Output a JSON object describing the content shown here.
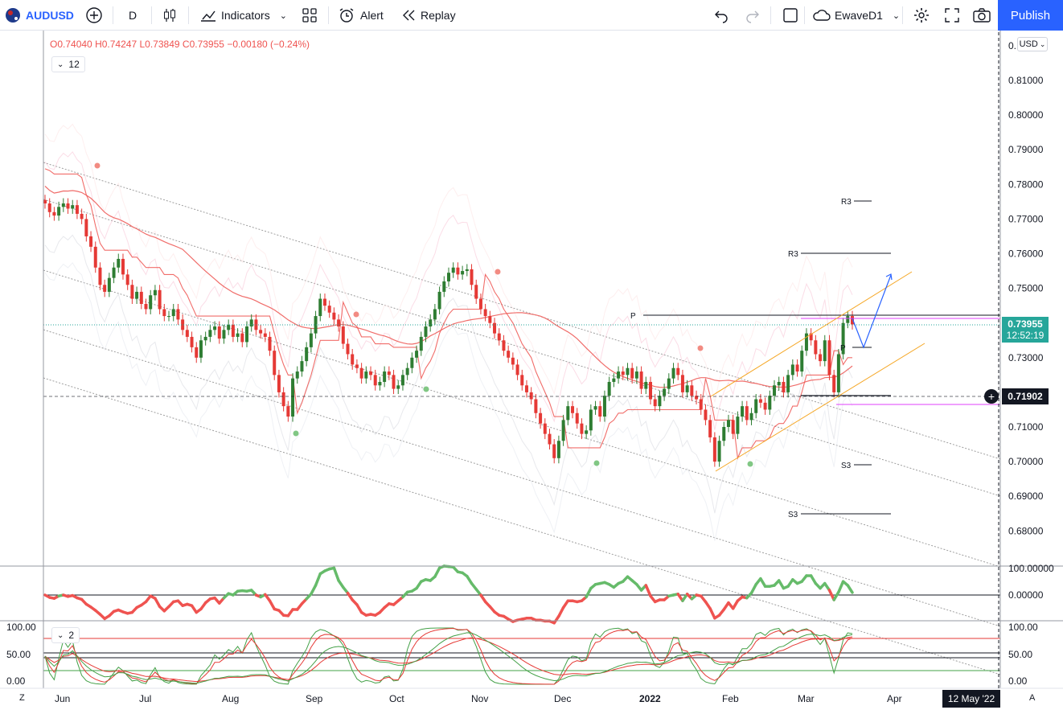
{
  "toolbar": {
    "symbol": "AUDUSD",
    "interval": "D",
    "indicators_label": "Indicators",
    "alert_label": "Alert",
    "replay_label": "Replay",
    "layout_name": "EwaveD1",
    "publish_label": "Publish"
  },
  "legend": {
    "open_key": "O",
    "open": "0.74040",
    "high_key": "H",
    "high": "0.74247",
    "low_key": "L",
    "low": "0.73849",
    "close_key": "C",
    "close": "0.73955",
    "change": "−0.00180 (−0.24%)",
    "indicator_count": "12",
    "osc_indicator_count": "2"
  },
  "price_axis": {
    "currency": "USD",
    "ticks": [
      "0.81000",
      "0.80000",
      "0.79000",
      "0.78000",
      "0.77000",
      "0.76000",
      "0.75000",
      "0.74000",
      "0.73000",
      "0.72000",
      "0.71000",
      "0.70000",
      "0.69000",
      "0.68000"
    ],
    "top_cut": "0.",
    "current_price": "0.73955",
    "countdown": "12:52:19",
    "crosshair_price": "0.71902"
  },
  "pane2_axis": {
    "ticks": [
      "100.00000",
      "0.00000"
    ]
  },
  "pane3_axis": {
    "left_ticks": [
      "100.00",
      "50.00",
      "0.00"
    ],
    "right_ticks": [
      "100.00",
      "50.00",
      "0.00"
    ]
  },
  "time_axis": {
    "labels": [
      "Jun",
      "Jul",
      "Aug",
      "Sep",
      "Oct",
      "Nov",
      "Dec",
      "2022",
      "Feb",
      "Mar",
      "Apr"
    ],
    "crosshair_date": "12 May '22",
    "left_corner": "Z",
    "right_corner": "A"
  },
  "pivot_labels": {
    "r3_upper": "R3",
    "r3_lower": "R3",
    "p_upper": "P",
    "p_lower": "P",
    "s3_upper": "S3",
    "s3_lower": "S3"
  },
  "colors": {
    "up": "#2e7d32",
    "down": "#e53935",
    "accent": "#2962ff",
    "current_price_bg": "#26a69a",
    "ma_red": "#f06d6a",
    "channel_orange": "#f5a623",
    "magenta": "#e040fb"
  },
  "chart_data": {
    "type": "candlestick",
    "symbol": "AUDUSD",
    "ylim": [
      0.675,
      0.815
    ],
    "closes": [
      0.7745,
      0.772,
      0.771,
      0.7735,
      0.7745,
      0.773,
      0.774,
      0.7715,
      0.77,
      0.765,
      0.762,
      0.756,
      0.751,
      0.749,
      0.753,
      0.756,
      0.7585,
      0.754,
      0.751,
      0.747,
      0.749,
      0.7455,
      0.744,
      0.748,
      0.7495,
      0.744,
      0.742,
      0.742,
      0.744,
      0.741,
      0.738,
      0.736,
      0.733,
      0.73,
      0.735,
      0.736,
      0.738,
      0.739,
      0.7355,
      0.738,
      0.7395,
      0.736,
      0.737,
      0.7345,
      0.739,
      0.741,
      0.738,
      0.737,
      0.736,
      0.732,
      0.725,
      0.72,
      0.716,
      0.713,
      0.724,
      0.726,
      0.729,
      0.733,
      0.737,
      0.742,
      0.747,
      0.745,
      0.743,
      0.741,
      0.739,
      0.734,
      0.731,
      0.728,
      0.727,
      0.724,
      0.726,
      0.725,
      0.722,
      0.723,
      0.726,
      0.725,
      0.721,
      0.722,
      0.725,
      0.727,
      0.73,
      0.732,
      0.736,
      0.739,
      0.741,
      0.744,
      0.749,
      0.752,
      0.7545,
      0.756,
      0.754,
      0.755,
      0.7555,
      0.751,
      0.747,
      0.744,
      0.742,
      0.74,
      0.737,
      0.735,
      0.732,
      0.73,
      0.728,
      0.725,
      0.722,
      0.72,
      0.718,
      0.714,
      0.711,
      0.708,
      0.705,
      0.701,
      0.706,
      0.712,
      0.716,
      0.714,
      0.711,
      0.708,
      0.709,
      0.715,
      0.716,
      0.713,
      0.719,
      0.723,
      0.724,
      0.726,
      0.725,
      0.727,
      0.724,
      0.726,
      0.721,
      0.723,
      0.718,
      0.716,
      0.719,
      0.721,
      0.724,
      0.727,
      0.725,
      0.72,
      0.722,
      0.719,
      0.718,
      0.715,
      0.712,
      0.707,
      0.7,
      0.706,
      0.71,
      0.712,
      0.708,
      0.713,
      0.716,
      0.712,
      0.714,
      0.718,
      0.717,
      0.715,
      0.719,
      0.722,
      0.723,
      0.72,
      0.725,
      0.728,
      0.726,
      0.732,
      0.737,
      0.735,
      0.731,
      0.729,
      0.735,
      0.725,
      0.72,
      0.731,
      0.74,
      0.742,
      0.7396
    ]
  }
}
